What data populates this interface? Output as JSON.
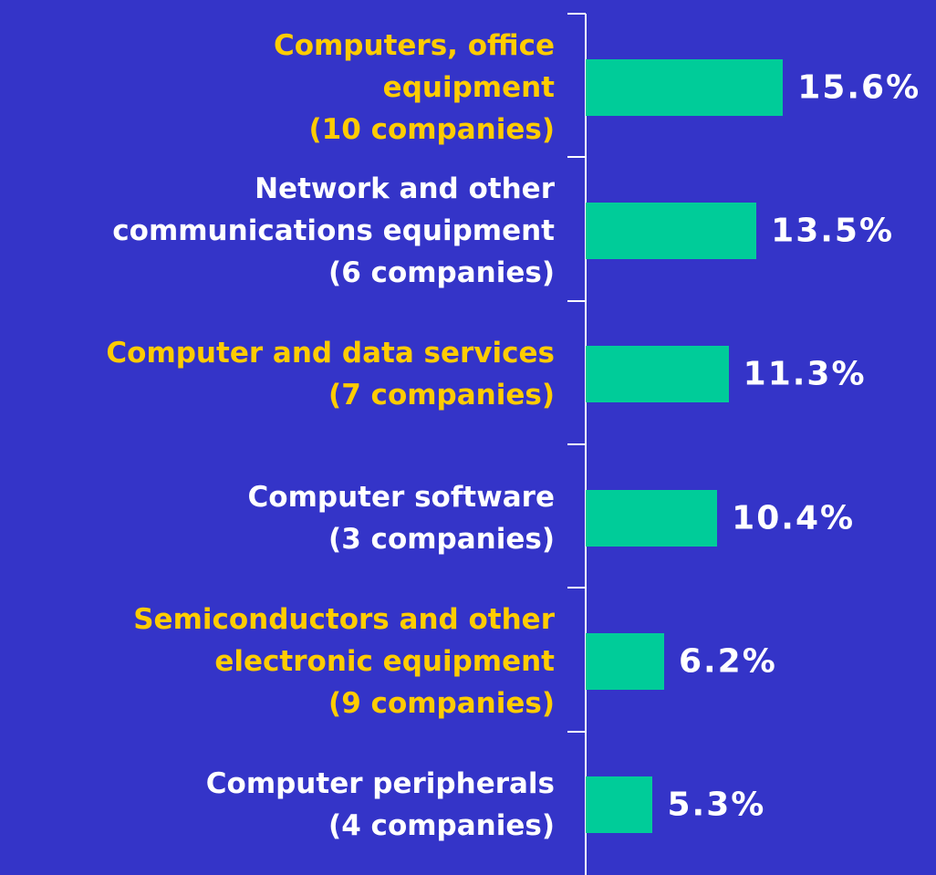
{
  "chart_data": {
    "type": "bar",
    "orientation": "horizontal",
    "categories": [
      "Computers, office\nequipment\n(10 companies)",
      "Network and other\ncommunications equipment\n(6 companies)",
      "Computer and data services\n(7 companies)",
      "Computer software\n(3 companies)",
      "Semiconductors and other\nelectronic equipment\n(9 companies)",
      "Computer peripherals\n(4 companies)"
    ],
    "values": [
      15.6,
      13.5,
      11.3,
      10.4,
      6.2,
      5.3
    ],
    "value_labels": [
      "15.6%",
      "13.5%",
      "11.3%",
      "10.4%",
      "6.2%",
      "5.3%"
    ],
    "color": "#00cc99",
    "category_colors": [
      "#ffcc00",
      "#ffffff",
      "#ffcc00",
      "#ffffff",
      "#ffcc00",
      "#ffffff"
    ],
    "xlim": [
      0,
      27.7
    ]
  }
}
